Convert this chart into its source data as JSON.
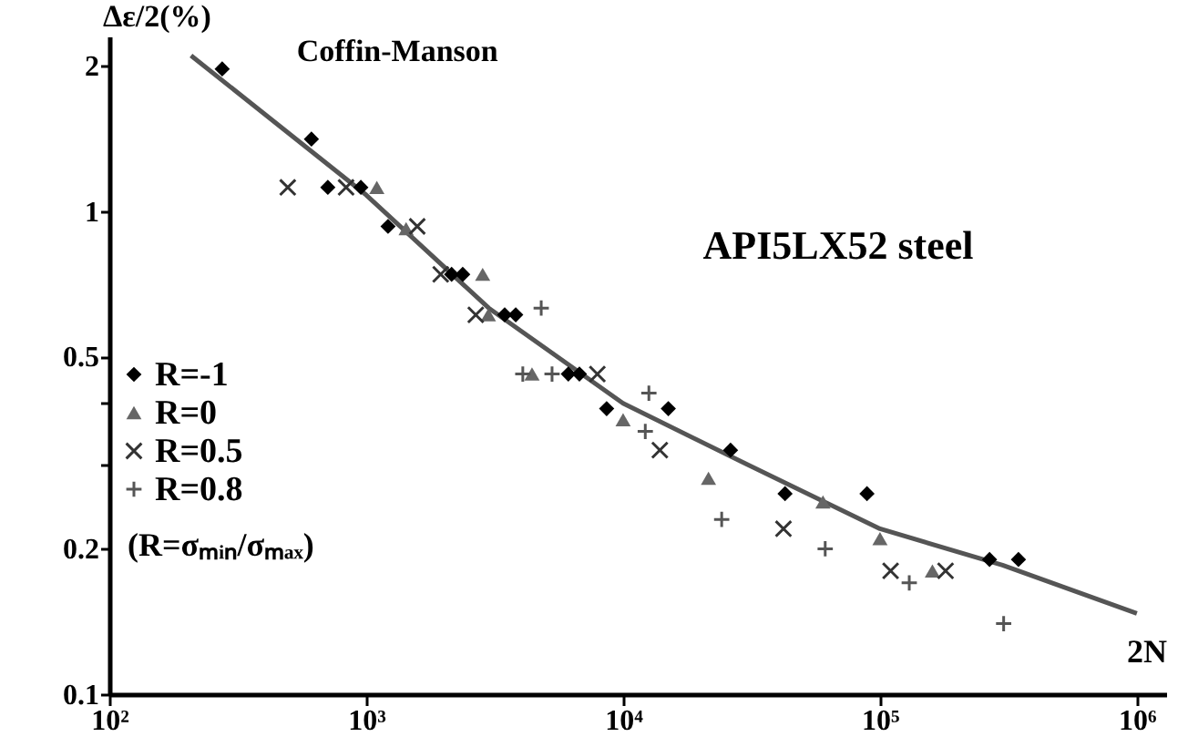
{
  "chart_data": {
    "type": "scatter",
    "xlabel": "2N",
    "ylabel": "Δε/2(%)",
    "log": "xy",
    "grid": false,
    "legend": "left",
    "xlim": [
      100,
      1300000
    ],
    "ylim": [
      0.1,
      2.3
    ],
    "xticks": [
      {
        "value": 100,
        "label": "10²"
      },
      {
        "value": 1000,
        "label": "10³"
      },
      {
        "value": 10000,
        "label": "10⁴"
      },
      {
        "value": 100000,
        "label": "10⁵"
      },
      {
        "value": 1000000,
        "label": "10⁶"
      }
    ],
    "yticks": [
      0.1,
      0.2,
      {
        "value": 0.3,
        "label": null
      },
      {
        "value": 0.4,
        "label": null
      },
      0.5,
      1,
      2
    ],
    "series": [
      {
        "name": "Coffin-Manson",
        "type": "line",
        "color": "#555555",
        "x": [
          208,
          1000,
          3000,
          10000,
          30000,
          100000,
          300000,
          1000000
        ],
        "values": [
          2.1,
          1.08,
          0.63,
          0.4,
          0.3,
          0.22,
          0.185,
          0.147
        ]
      },
      {
        "name": "R=-1",
        "color": "#000000",
        "marker": "diamond",
        "x": [
          275,
          612,
          709,
          953,
          1216,
          2150,
          2375,
          3460,
          3820,
          6120,
          6760,
          8630,
          15000,
          26200,
          42700,
          89000,
          267000,
          346000
        ],
        "values": [
          1.97,
          1.41,
          1.12,
          1.12,
          0.93,
          0.74,
          0.74,
          0.61,
          0.61,
          0.46,
          0.46,
          0.39,
          0.39,
          0.32,
          0.26,
          0.26,
          0.19,
          0.19
        ]
      },
      {
        "name": "R=0",
        "color": "#666666",
        "marker": "triangle",
        "x": [
          1100,
          1430,
          2840,
          2990,
          4420,
          10000,
          21500,
          60000,
          100000,
          160000
        ],
        "values": [
          1.12,
          0.92,
          0.74,
          0.61,
          0.46,
          0.37,
          0.28,
          0.25,
          0.21,
          0.18
        ]
      },
      {
        "name": "R=0.5",
        "color": "#333333",
        "marker": "cross",
        "x": [
          495,
          835,
          1580,
          1950,
          2670,
          7940,
          13900,
          42100,
          110000,
          180000
        ],
        "values": [
          1.12,
          1.12,
          0.93,
          0.74,
          0.61,
          0.46,
          0.32,
          0.22,
          0.18,
          0.18
        ]
      },
      {
        "name": "R=0.8",
        "color": "#555555",
        "marker": "plus",
        "x": [
          4070,
          4800,
          5290,
          12200,
          12600,
          24200,
          61200,
          130000,
          303000
        ],
        "values": [
          0.46,
          0.63,
          0.46,
          0.35,
          0.42,
          0.23,
          0.2,
          0.17,
          0.14
        ]
      }
    ],
    "annotations": [
      "API5LX52 steel",
      "(R=σₘᵢₙ/σₘₐₓ)"
    ]
  }
}
